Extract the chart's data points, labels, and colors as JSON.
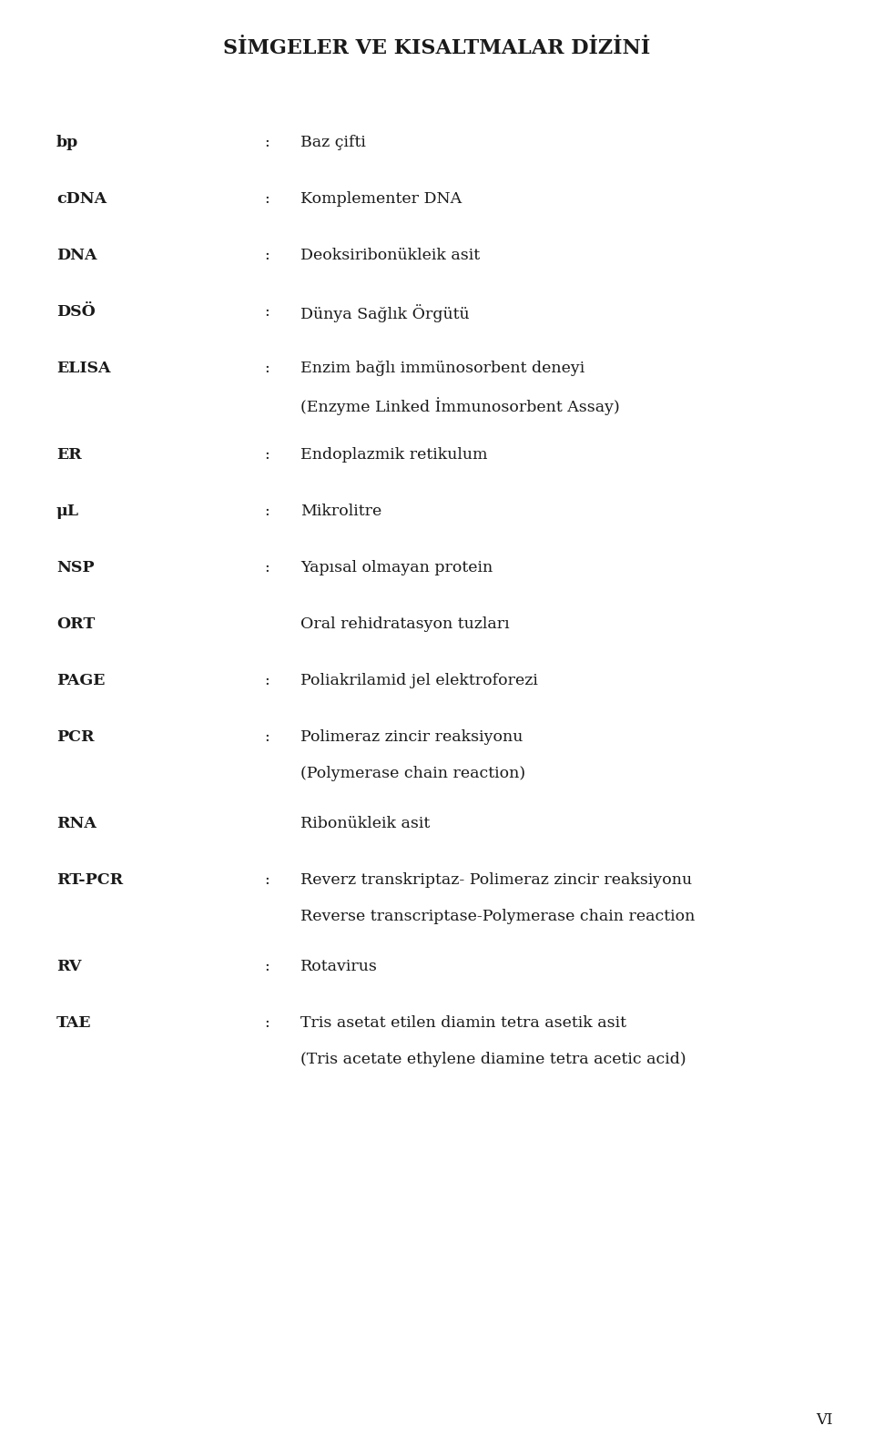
{
  "title": "SİMGELER VE KISALTMALAR DİZİNİ",
  "background_color": "#ffffff",
  "text_color": "#1a1a1a",
  "title_fontsize": 16,
  "body_fontsize": 12.5,
  "page_number": "VI",
  "page_num_fontsize": 12,
  "entries": [
    {
      "abbr": "bp",
      "has_colon": true,
      "lines": [
        "Baz çifti"
      ]
    },
    {
      "abbr": "cDNA",
      "has_colon": true,
      "lines": [
        "Komplementer DNA"
      ]
    },
    {
      "abbr": "DNA",
      "has_colon": true,
      "lines": [
        "Deoksiribonükleik asit"
      ]
    },
    {
      "abbr": "DSÖ",
      "has_colon": true,
      "lines": [
        "Dünya Sağlık Örgütü"
      ]
    },
    {
      "abbr": "ELISA",
      "has_colon": true,
      "lines": [
        "Enzim bağlı immünosorbent deneyi",
        "(Enzyme Linked İmmunosorbent Assay)"
      ]
    },
    {
      "abbr": "ER",
      "has_colon": true,
      "lines": [
        "Endoplazmik retikulum"
      ]
    },
    {
      "abbr": "μL",
      "has_colon": true,
      "lines": [
        "Mikrolitre"
      ]
    },
    {
      "abbr": "NSP",
      "has_colon": true,
      "lines": [
        "Yapısal olmayan protein"
      ]
    },
    {
      "abbr": "ORT",
      "has_colon": false,
      "lines": [
        "Oral rehidratasyon tuzları"
      ]
    },
    {
      "abbr": "PAGE",
      "has_colon": true,
      "lines": [
        "Poliakrilamid jel elektroforezi"
      ]
    },
    {
      "abbr": "PCR",
      "has_colon": true,
      "lines": [
        "Polimeraz zincir reaksiyonu",
        "(Polymerase chain reaction)"
      ]
    },
    {
      "abbr": "RNA",
      "has_colon": false,
      "lines": [
        "Ribonükleik asit"
      ]
    },
    {
      "abbr": "RT-PCR",
      "has_colon": true,
      "lines": [
        "Reverz transkriptaz- Polimeraz zincir reaksiyonu",
        "Reverse transcriptase-Polymerase chain reaction"
      ]
    },
    {
      "abbr": "RV",
      "has_colon": true,
      "lines": [
        "Rotavirus"
      ]
    },
    {
      "abbr": "TAE",
      "has_colon": true,
      "lines": [
        "Tris asetat etilen diamin tetra asetik asit",
        "(Tris acetate ethylene diamine tetra acetic acid)"
      ]
    }
  ]
}
